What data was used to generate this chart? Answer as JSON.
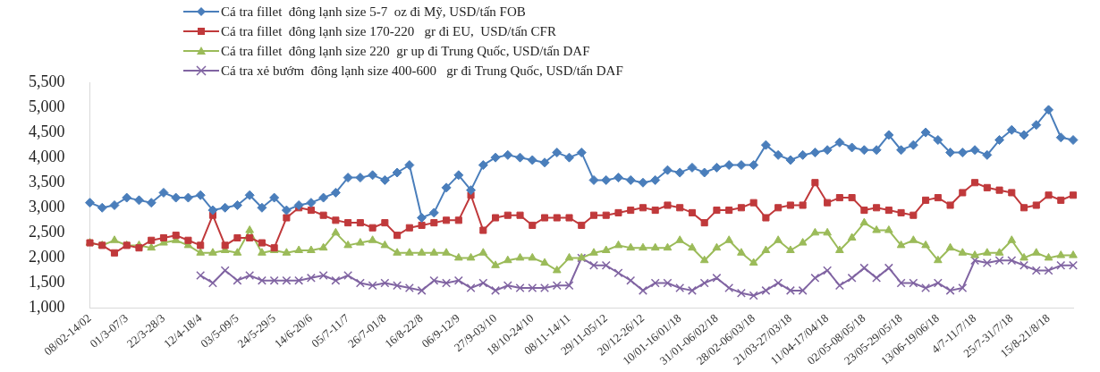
{
  "chart_data": {
    "type": "line",
    "legend": "top",
    "grid": false,
    "categories": [
      "08/02-14/02",
      null,
      null,
      "01/3-07/3",
      null,
      null,
      "22/3-28/3",
      null,
      null,
      "12/4-18/4",
      null,
      null,
      "03/5-09/5",
      null,
      null,
      "24/5-29/5",
      null,
      null,
      "14/6-20/6",
      null,
      null,
      "05/7-11/7",
      null,
      null,
      "26/7-01/8",
      null,
      null,
      "16/8-22/8",
      null,
      null,
      "06/9-12/9",
      null,
      null,
      "27/9-03/10",
      null,
      null,
      "18/10-24/10",
      null,
      null,
      "08/11-14/11",
      null,
      null,
      "29/11-05/12",
      null,
      null,
      "20/12-26/12",
      null,
      null,
      "10/01-16/01/18",
      null,
      null,
      "31/01-06/02/18",
      null,
      null,
      "28/02-06/03/18",
      null,
      null,
      "21/03-27/03/18",
      null,
      null,
      "11/04-17/04/18",
      null,
      null,
      "02/05-08/05/18",
      null,
      null,
      "23/05-29/05/18",
      null,
      null,
      "13/06-19/06/18",
      null,
      null,
      "4/7-11/7/18",
      null,
      null,
      "25/7-31/7/18",
      null,
      null,
      "15/8-21/8/18",
      null,
      null
    ],
    "ylim": [
      1000,
      5500
    ],
    "yticks": [
      {
        "value": 1000,
        "label": "1,000"
      },
      {
        "value": 1500,
        "label": "1,500"
      },
      {
        "value": 2000,
        "label": "2,000"
      },
      {
        "value": 2500,
        "label": "2,500"
      },
      {
        "value": 3000,
        "label": "3,000"
      },
      {
        "value": 3500,
        "label": "3,500"
      },
      {
        "value": 4000,
        "label": "4,000"
      },
      {
        "value": 4500,
        "label": "4,500"
      },
      {
        "value": 5000,
        "label": "5,000"
      },
      {
        "value": 5500,
        "label": "5,500"
      }
    ],
    "series": [
      {
        "name": "Cá tra fillet  đông lạnh size 5-7  oz đi Mỹ, USD/tấn FOB",
        "color": "#4a7ebb",
        "marker": "diamond",
        "values": [
          3100,
          3000,
          3050,
          3200,
          3150,
          3100,
          3300,
          3200,
          3200,
          3250,
          2950,
          3000,
          3050,
          3250,
          3000,
          3200,
          2950,
          3050,
          3100,
          3200,
          3300,
          3600,
          3600,
          3650,
          3550,
          3700,
          3850,
          2800,
          2900,
          3400,
          3650,
          3350,
          3850,
          4000,
          4050,
          4000,
          3950,
          3900,
          4100,
          4000,
          4100,
          3550,
          3550,
          3600,
          3550,
          3500,
          3550,
          3750,
          3700,
          3800,
          3700,
          3800,
          3850,
          3850,
          3850,
          4250,
          4050,
          3950,
          4050,
          4100,
          4150,
          4300,
          4200,
          4150,
          4150,
          4450,
          4150,
          4250,
          4500,
          4350,
          4100,
          4100,
          4150,
          4050,
          4350,
          4550,
          4450,
          4650,
          4950,
          4400,
          4350
        ]
      },
      {
        "name": "Cá tra fillet  đông lạnh size 170-220   gr đi EU,  USD/tấn CFR",
        "color": "#c0393b",
        "marker": "square",
        "values": [
          2300,
          2250,
          2100,
          2250,
          2200,
          2350,
          2400,
          2450,
          2350,
          2250,
          2850,
          2250,
          2400,
          2400,
          2300,
          2200,
          2800,
          3000,
          2950,
          2850,
          2750,
          2700,
          2700,
          2600,
          2700,
          2450,
          2600,
          2650,
          2700,
          2750,
          2750,
          3250,
          2550,
          2800,
          2850,
          2850,
          2650,
          2800,
          2800,
          2800,
          2650,
          2850,
          2850,
          2900,
          2950,
          3000,
          2950,
          3050,
          3000,
          2900,
          2700,
          2950,
          2950,
          3000,
          3100,
          2800,
          3000,
          3050,
          3050,
          3500,
          3100,
          3200,
          3200,
          2950,
          3000,
          2950,
          2900,
          2850,
          3150,
          3200,
          3050,
          3300,
          3500,
          3400,
          3350,
          3300,
          3000,
          3050,
          3250,
          3150,
          3250
        ]
      },
      {
        "name": "Cá tra fillet  đông lạnh size 220  gr up đi Trung Quốc, USD/tấn DAF",
        "color": "#9bbb59",
        "marker": "triangle",
        "values": [
          2300,
          2250,
          2350,
          2250,
          2250,
          2200,
          2300,
          2350,
          2250,
          2100,
          2100,
          2150,
          2100,
          2550,
          2100,
          2150,
          2100,
          2150,
          2150,
          2200,
          2500,
          2250,
          2300,
          2350,
          2250,
          2100,
          2100,
          2100,
          2100,
          2100,
          2000,
          2000,
          2100,
          1850,
          1950,
          2000,
          2000,
          1900,
          1750,
          2000,
          2000,
          2100,
          2150,
          2250,
          2200,
          2200,
          2200,
          2200,
          2350,
          2200,
          1950,
          2200,
          2350,
          2100,
          1900,
          2150,
          2350,
          2150,
          2300,
          2500,
          2500,
          2150,
          2400,
          2700,
          2550,
          2550,
          2250,
          2350,
          2250,
          1950,
          2200,
          2100,
          2050,
          2100,
          2100,
          2350,
          2000,
          2100,
          2000,
          2050,
          2050
        ]
      },
      {
        "name": "Cá tra xẻ bướm  đông lạnh size 400-600   gr đi Trung Quốc, USD/tấn DAF",
        "color": "#8064a2",
        "marker": "cross",
        "values": [
          null,
          null,
          null,
          null,
          null,
          null,
          null,
          null,
          null,
          1650,
          1500,
          1750,
          1550,
          1650,
          1550,
          1550,
          1550,
          1550,
          1600,
          1650,
          1550,
          1650,
          1500,
          1450,
          1500,
          1450,
          1400,
          1350,
          1550,
          1500,
          1550,
          1400,
          1500,
          1350,
          1450,
          1400,
          1400,
          1400,
          1450,
          1450,
          2000,
          1850,
          1850,
          1700,
          1550,
          1350,
          1500,
          1500,
          1400,
          1350,
          1500,
          1600,
          1400,
          1300,
          1250,
          1350,
          1500,
          1350,
          1350,
          1600,
          1750,
          1450,
          1600,
          1800,
          1600,
          1800,
          1500,
          1500,
          1400,
          1500,
          1350,
          1400,
          1950,
          1900,
          1950,
          1950,
          1850,
          1750,
          1750,
          1850,
          1850
        ]
      }
    ]
  }
}
